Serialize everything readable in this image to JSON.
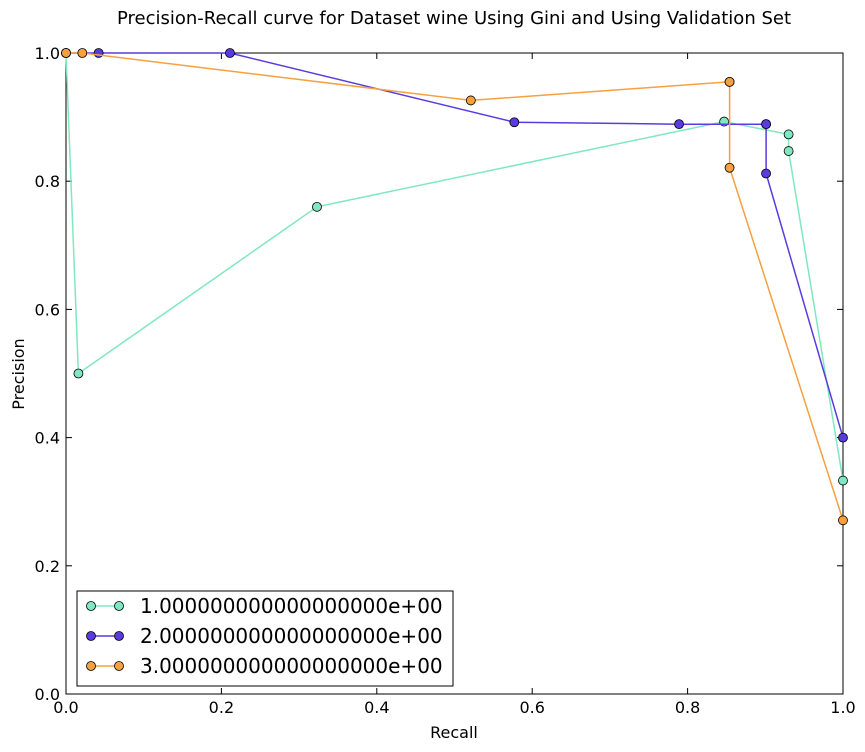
{
  "chart_data": {
    "type": "line",
    "title": "Precision-Recall curve for Dataset wine Using Gini and Using Validation Set",
    "xlabel": "Recall",
    "ylabel": "Precision",
    "xlim": [
      0.0,
      1.0
    ],
    "ylim": [
      0.0,
      1.0
    ],
    "xticks": [
      "0.0",
      "0.2",
      "0.4",
      "0.6",
      "0.8",
      "1.0"
    ],
    "yticks": [
      "0.0",
      "0.2",
      "0.4",
      "0.6",
      "0.8",
      "1.0"
    ],
    "grid": false,
    "legend_position": "bottom-left",
    "series": [
      {
        "name": "1.000000000000000000e+00",
        "color": "#7fe8c0",
        "x": [
          0.0,
          0.016,
          0.323,
          0.847,
          0.93,
          0.93,
          1.0
        ],
        "y": [
          1.0,
          0.5,
          0.76,
          0.893,
          0.873,
          0.847,
          0.333
        ]
      },
      {
        "name": "2.000000000000000000e+00",
        "color": "#5a3be0",
        "x": [
          0.0,
          0.042,
          0.211,
          0.577,
          0.789,
          0.901,
          0.901,
          0.901,
          1.0
        ],
        "y": [
          1.0,
          1.0,
          1.0,
          0.892,
          0.889,
          0.889,
          0.889,
          0.812,
          0.4
        ]
      },
      {
        "name": "3.000000000000000000e+00",
        "color": "#f7a040",
        "x": [
          0.0,
          0.021,
          0.521,
          0.854,
          0.854,
          0.854,
          1.0
        ],
        "y": [
          1.0,
          1.0,
          0.926,
          0.955,
          0.955,
          0.821,
          0.271
        ]
      }
    ]
  }
}
